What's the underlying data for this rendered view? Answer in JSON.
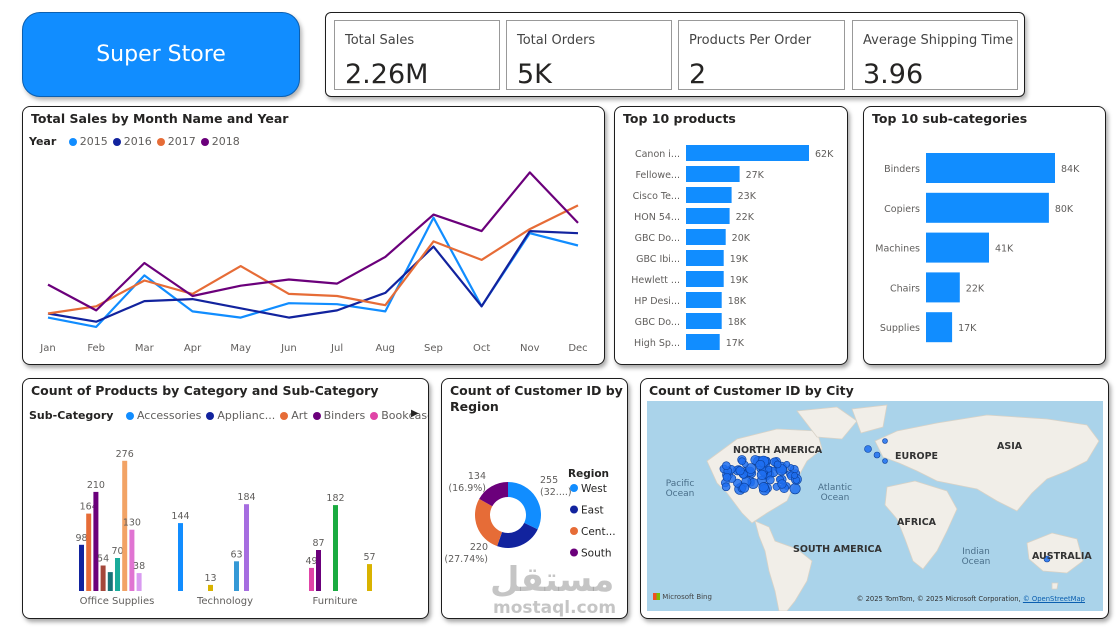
{
  "brand": {
    "title": "Super Store"
  },
  "kpis": [
    {
      "label": "Total Sales",
      "value": "2.26M"
    },
    {
      "label": "Total Orders",
      "value": "5K"
    },
    {
      "label": "Products Per Order",
      "value": "2"
    },
    {
      "label": "Average Shipping Time",
      "value": "3.96"
    }
  ],
  "sales_chart": {
    "title": "Total Sales by Month Name and Year",
    "legend_title": "Year",
    "chart_data": {
      "type": "line",
      "x": [
        "Jan",
        "Feb",
        "Mar",
        "Apr",
        "May",
        "Jun",
        "Jul",
        "Aug",
        "Sep",
        "Oct",
        "Nov",
        "Dec"
      ],
      "series": [
        {
          "name": "2015",
          "color": "#118dff",
          "values": [
            14,
            5,
            55,
            20,
            14,
            28,
            27,
            20,
            111,
            25,
            96,
            84
          ]
        },
        {
          "name": "2016",
          "color": "#12239e",
          "values": [
            18,
            10,
            30,
            32,
            23,
            14,
            21,
            38,
            83,
            25,
            98,
            96
          ]
        },
        {
          "name": "2017",
          "color": "#e66c37",
          "values": [
            18,
            25,
            50,
            37,
            64,
            37,
            35,
            26,
            88,
            70,
            100,
            123
          ]
        },
        {
          "name": "2018",
          "color": "#6b007b",
          "values": [
            46,
            21,
            67,
            35,
            45,
            51,
            47,
            73,
            114,
            98,
            155,
            106
          ]
        }
      ],
      "ylim": [
        0,
        170
      ]
    }
  },
  "top_products": {
    "title": "Top 10 products",
    "chart_data": {
      "type": "bar",
      "categories": [
        "Canon i...",
        "Fellowe...",
        "Cisco Te...",
        "HON 54...",
        "GBC Do...",
        "GBC Ibi...",
        "Hewlett ...",
        "HP Desi...",
        "GBC Do...",
        "High Sp..."
      ],
      "values": [
        62,
        27,
        23,
        22,
        20,
        19,
        19,
        18,
        18,
        17
      ],
      "labels": [
        "62K",
        "27K",
        "23K",
        "22K",
        "20K",
        "19K",
        "19K",
        "18K",
        "18K",
        "17K"
      ],
      "color": "#118dff"
    }
  },
  "top_subcats": {
    "title": "Top 10 sub-categories",
    "chart_data": {
      "type": "bar",
      "categories": [
        "Binders",
        "Copiers",
        "Machines",
        "Chairs",
        "Supplies"
      ],
      "values": [
        84,
        80,
        41,
        22,
        17
      ],
      "labels": [
        "84K",
        "80K",
        "41K",
        "22K",
        "17K"
      ],
      "color": "#118dff"
    }
  },
  "category_chart": {
    "title": "Count of Products by Category and Sub-Category",
    "legend_title": "Sub-Category",
    "legend": [
      {
        "name": "Accessories",
        "color": "#118dff"
      },
      {
        "name": "Applianc...",
        "color": "#12239e"
      },
      {
        "name": "Art",
        "color": "#e66c37"
      },
      {
        "name": "Binders",
        "color": "#6b007b"
      },
      {
        "name": "Bookcases",
        "color": "#e044a7"
      }
    ],
    "chart_data": {
      "type": "bar",
      "categories": [
        "Office Supplies",
        "Technology",
        "Furniture"
      ],
      "groups": [
        {
          "category": "Office Supplies",
          "bars": [
            {
              "value": 98,
              "label": "98",
              "color": "#12239e"
            },
            {
              "value": 164,
              "label": "164",
              "color": "#e66c37"
            },
            {
              "value": 210,
              "label": "210",
              "color": "#6b007b"
            },
            {
              "value": 54,
              "label": "54",
              "color": "#a4473b"
            },
            {
              "value": 40,
              "label": "",
              "color": "#197278"
            },
            {
              "value": 70,
              "label": "70",
              "color": "#1aab9b"
            },
            {
              "value": 276,
              "label": "276",
              "color": "#f2a365"
            },
            {
              "value": 130,
              "label": "130",
              "color": "#e074d2"
            },
            {
              "value": 38,
              "label": "38",
              "color": "#d99bf0"
            }
          ]
        },
        {
          "category": "Technology",
          "bars": [
            {
              "value": 144,
              "label": "144",
              "color": "#118dff"
            },
            {
              "value": 13,
              "label": "13",
              "color": "#d9b300"
            },
            {
              "value": 63,
              "label": "63",
              "color": "#3599d6"
            },
            {
              "value": 184,
              "label": "184",
              "color": "#a66de0"
            }
          ]
        },
        {
          "category": "Furniture",
          "bars": [
            {
              "value": 49,
              "label": "49",
              "color": "#e044a7"
            },
            {
              "value": 87,
              "label": "87",
              "color": "#6b007b"
            },
            {
              "value": 182,
              "label": "182",
              "color": "#1aab40"
            },
            {
              "value": 57,
              "label": "57",
              "color": "#d9b300"
            }
          ]
        }
      ],
      "ylim": [
        0,
        300
      ]
    }
  },
  "region_chart": {
    "title_line1": "Count of Customer ID by",
    "title_line2": "Region",
    "legend_title": "Region",
    "chart_data": {
      "type": "pie",
      "slices": [
        {
          "name": "West",
          "value": 255,
          "color": "#118dff",
          "label": "255",
          "pct": "(32....)"
        },
        {
          "name": "East",
          "value": 184,
          "color": "#12239e",
          "label": "",
          "pct": ""
        },
        {
          "name": "Cent...",
          "value": 220,
          "color": "#e66c37",
          "label": "220",
          "pct": "(27.74%)"
        },
        {
          "name": "South",
          "value": 134,
          "color": "#6b007b",
          "label": "134",
          "pct": "(16.9%)"
        }
      ]
    }
  },
  "city_map": {
    "title": "Count of Customer ID by City",
    "labels": {
      "north_america": "NORTH AMERICA",
      "europe": "EUROPE",
      "asia": "ASIA",
      "africa": "AFRICA",
      "south_america": "SOUTH AMERICA",
      "australia": "AUSTRALIA",
      "pacific": "Pacific Ocean",
      "atlantic": "Atlantic Ocean",
      "indian": "Indian Ocean"
    },
    "logo": "Microsoft Bing",
    "copyright": "© 2025 TomTom, © 2025 Microsoft Corporation,",
    "osm": "© OpenStreetMap"
  },
  "watermark": {
    "arabic": "مستقل",
    "latin": "mostaql.com"
  }
}
